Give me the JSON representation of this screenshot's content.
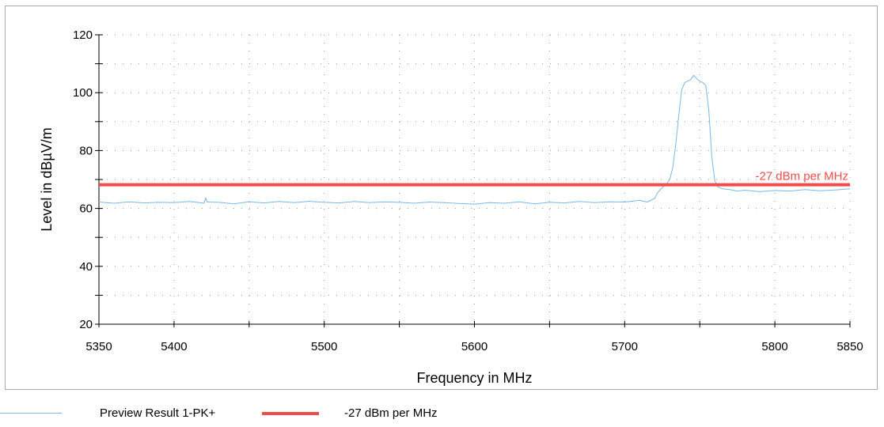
{
  "colors": {
    "trace": "#7ab8e8",
    "limit": "#f24b4b",
    "grid": "#9a9a9a",
    "axis": "#000000",
    "frame": "#a9a9a9"
  },
  "chart_data": {
    "type": "line",
    "xlabel": "Frequency in MHz",
    "ylabel": "Level in dBµV/m",
    "xlim": [
      5350,
      5850
    ],
    "ylim": [
      20,
      120
    ],
    "x_ticks": [
      5350,
      5400,
      5500,
      5600,
      5700,
      5800,
      5850
    ],
    "y_ticks": [
      20,
      40,
      60,
      80,
      100,
      120
    ],
    "x_minor_step": 50,
    "y_minor_step": 10,
    "grid": true,
    "legend_position": "bottom-left",
    "series": [
      {
        "name": "Preview Result 1-PK+",
        "color": "#7ab8e8",
        "x": [
          5350,
          5360,
          5370,
          5380,
          5390,
          5400,
          5410,
          5420,
          5421,
          5422,
          5430,
          5440,
          5450,
          5460,
          5470,
          5480,
          5490,
          5500,
          5510,
          5520,
          5530,
          5540,
          5550,
          5560,
          5570,
          5580,
          5590,
          5600,
          5610,
          5620,
          5630,
          5640,
          5650,
          5660,
          5670,
          5680,
          5690,
          5700,
          5705,
          5710,
          5715,
          5720,
          5722,
          5725,
          5728,
          5730,
          5732,
          5734,
          5736,
          5738,
          5740,
          5742,
          5744,
          5746,
          5748,
          5750,
          5752,
          5754,
          5756,
          5758,
          5760,
          5762,
          5765,
          5770,
          5775,
          5780,
          5790,
          5800,
          5810,
          5820,
          5830,
          5840,
          5850
        ],
        "y": [
          62.2,
          61.8,
          62.3,
          61.9,
          62.1,
          62.0,
          62.4,
          61.8,
          63.7,
          62.2,
          62.1,
          61.6,
          62.3,
          61.9,
          62.4,
          62.0,
          62.5,
          62.1,
          61.9,
          62.4,
          62.0,
          62.3,
          62.1,
          61.8,
          62.2,
          62.0,
          61.7,
          61.5,
          62.0,
          61.8,
          62.3,
          61.6,
          62.1,
          61.9,
          62.4,
          62.0,
          62.3,
          62.2,
          62.5,
          62.8,
          62.2,
          63.5,
          65.5,
          67.2,
          68.5,
          70.0,
          74.0,
          82.0,
          92.0,
          101.0,
          103.5,
          104.0,
          104.5,
          106.0,
          104.8,
          104.0,
          103.5,
          102.5,
          94.0,
          78.0,
          69.5,
          67.5,
          66.8,
          66.5,
          66.0,
          66.3,
          65.8,
          66.2,
          66.0,
          66.5,
          66.1,
          66.4,
          66.8
        ]
      },
      {
        "name": "-27 dBm per MHz",
        "color": "#f24b4b",
        "x": [
          5350,
          5850
        ],
        "y": [
          68.2,
          68.2
        ]
      }
    ],
    "annotations": [
      {
        "text": "-27 dBm per MHz",
        "x": 5850,
        "y": 68.2,
        "anchor": "end"
      }
    ]
  },
  "legend": [
    {
      "label": "Preview Result 1-PK+",
      "color": "#7ab8e8",
      "style": "thin"
    },
    {
      "label": "-27 dBm per MHz",
      "color": "#f24b4b",
      "style": "thick"
    }
  ]
}
